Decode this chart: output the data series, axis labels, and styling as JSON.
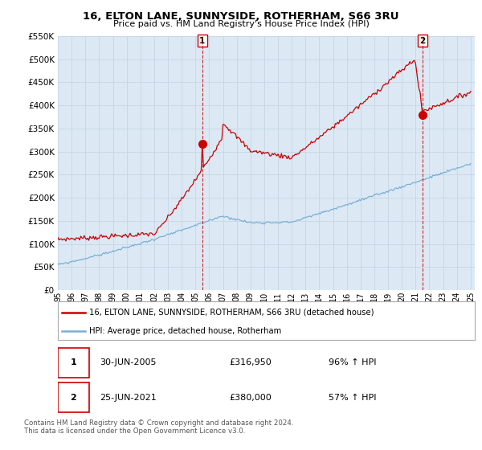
{
  "title": "16, ELTON LANE, SUNNYSIDE, ROTHERHAM, S66 3RU",
  "subtitle": "Price paid vs. HM Land Registry's House Price Index (HPI)",
  "legend_line1": "16, ELTON LANE, SUNNYSIDE, ROTHERHAM, S66 3RU (detached house)",
  "legend_line2": "HPI: Average price, detached house, Rotherham",
  "transaction1_date": "30-JUN-2005",
  "transaction1_price": "£316,950",
  "transaction1_hpi": "96% ↑ HPI",
  "transaction2_date": "25-JUN-2021",
  "transaction2_price": "£380,000",
  "transaction2_hpi": "57% ↑ HPI",
  "footer": "Contains HM Land Registry data © Crown copyright and database right 2024.\nThis data is licensed under the Open Government Licence v3.0.",
  "red_color": "#cc0000",
  "blue_color": "#7bafd4",
  "vline_color": "#cc0000",
  "grid_color": "#c8d8e8",
  "bg_color": "#dce9f5",
  "outer_bg": "#ffffff",
  "ylim": [
    0,
    550000
  ],
  "yticks": [
    0,
    50000,
    100000,
    150000,
    200000,
    250000,
    300000,
    350000,
    400000,
    450000,
    500000,
    550000
  ],
  "xstart_year": 1995,
  "xend_year": 2025
}
